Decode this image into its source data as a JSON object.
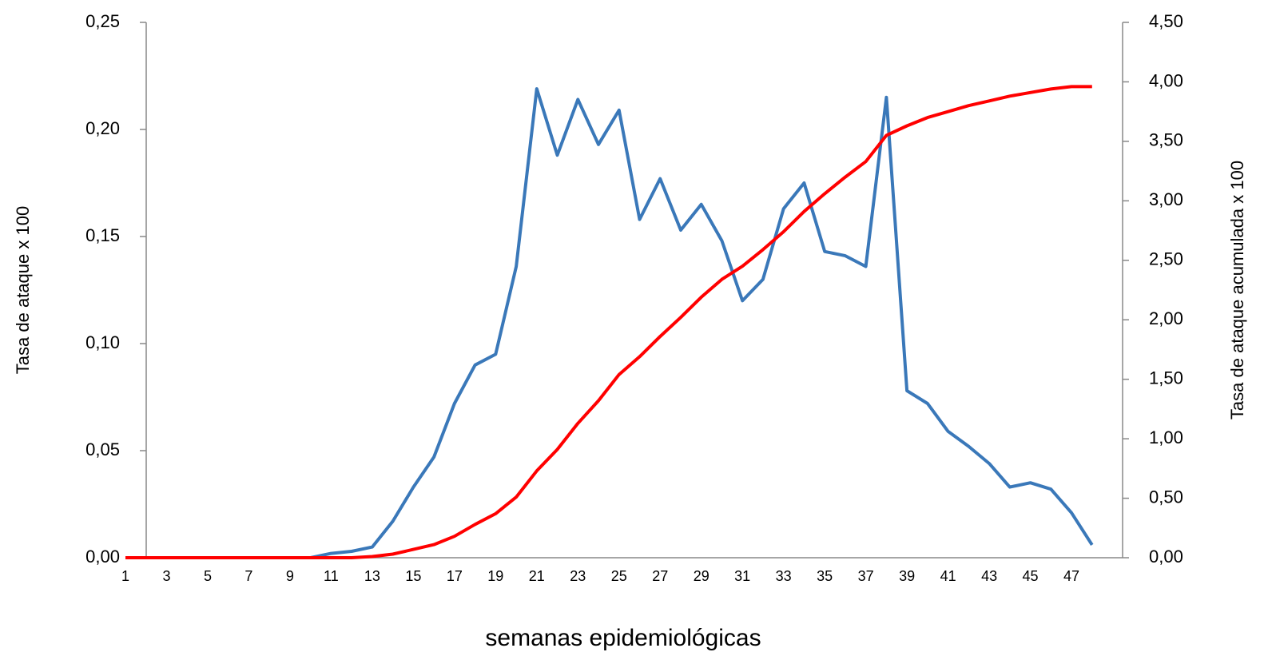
{
  "chart_data": {
    "type": "line",
    "x_label": "semanas epidemiológicas",
    "y_label": "Tasa de ataque x 100",
    "y2_label": "Tasa de ataque acumulada x 100",
    "categories": [
      1,
      null,
      3,
      null,
      5,
      null,
      7,
      null,
      9,
      null,
      11,
      null,
      13,
      null,
      15,
      null,
      17,
      null,
      19,
      null,
      21,
      null,
      23,
      null,
      25,
      null,
      27,
      null,
      29,
      null,
      31,
      null,
      33,
      null,
      35,
      null,
      37,
      null,
      39,
      null,
      41,
      null,
      43,
      null,
      45,
      null,
      47,
      null
    ],
    "ylim": [
      0,
      0.25
    ],
    "yticks": [
      {
        "value": 0,
        "label": "0,00"
      },
      {
        "value": 0.05,
        "label": "0,05"
      },
      {
        "value": 0.1,
        "label": "0,10"
      },
      {
        "value": 0.15,
        "label": "0,15"
      },
      {
        "value": 0.2,
        "label": "0,20"
      },
      {
        "value": 0.25,
        "label": "0,25"
      }
    ],
    "y2lim": [
      0,
      4.5
    ],
    "y2ticks": [
      {
        "value": 0,
        "label": "0,00"
      },
      {
        "value": 0.5,
        "label": "0,50"
      },
      {
        "value": 1,
        "label": "1,00"
      },
      {
        "value": 1.5,
        "label": "1,50"
      },
      {
        "value": 2,
        "label": "2,00"
      },
      {
        "value": 2.5,
        "label": "2,50"
      },
      {
        "value": 3,
        "label": "3,00"
      },
      {
        "value": 3.5,
        "label": "3,50"
      },
      {
        "value": 4,
        "label": "4,00"
      },
      {
        "value": 4.5,
        "label": "4,50"
      }
    ],
    "series": [
      {
        "color": "#3a78b9",
        "values": [
          0,
          0,
          0,
          0,
          0,
          0,
          0,
          0,
          0,
          0,
          0.002,
          0.003,
          0.005,
          0.017,
          0.033,
          0.047,
          0.072,
          0.09,
          0.095,
          0.136,
          0.219,
          0.188,
          0.214,
          0.193,
          0.209,
          0.158,
          0.177,
          0.153,
          0.165,
          0.148,
          0.12,
          0.13,
          0.163,
          0.175,
          0.143,
          0.141,
          0.136,
          0.215,
          0.078,
          0.072,
          0.059,
          0.052,
          0.044,
          0.033,
          0.035,
          0.032,
          0.021,
          0.006
        ]
      },
      {
        "color": "#ff0000",
        "axis": "y2",
        "values": [
          0,
          0,
          0,
          0,
          0,
          0,
          0,
          0,
          0,
          0,
          0,
          0,
          0.01,
          0.03,
          0.07,
          0.11,
          0.18,
          0.28,
          0.37,
          0.51,
          0.73,
          0.91,
          1.13,
          1.32,
          1.54,
          1.69,
          1.86,
          2.02,
          2.19,
          2.34,
          2.45,
          2.59,
          2.74,
          2.91,
          3.06,
          3.2,
          3.33,
          3.55,
          3.63,
          3.7,
          3.75,
          3.8,
          3.84,
          3.88,
          3.91,
          3.94,
          3.96,
          3.96
        ]
      }
    ]
  }
}
